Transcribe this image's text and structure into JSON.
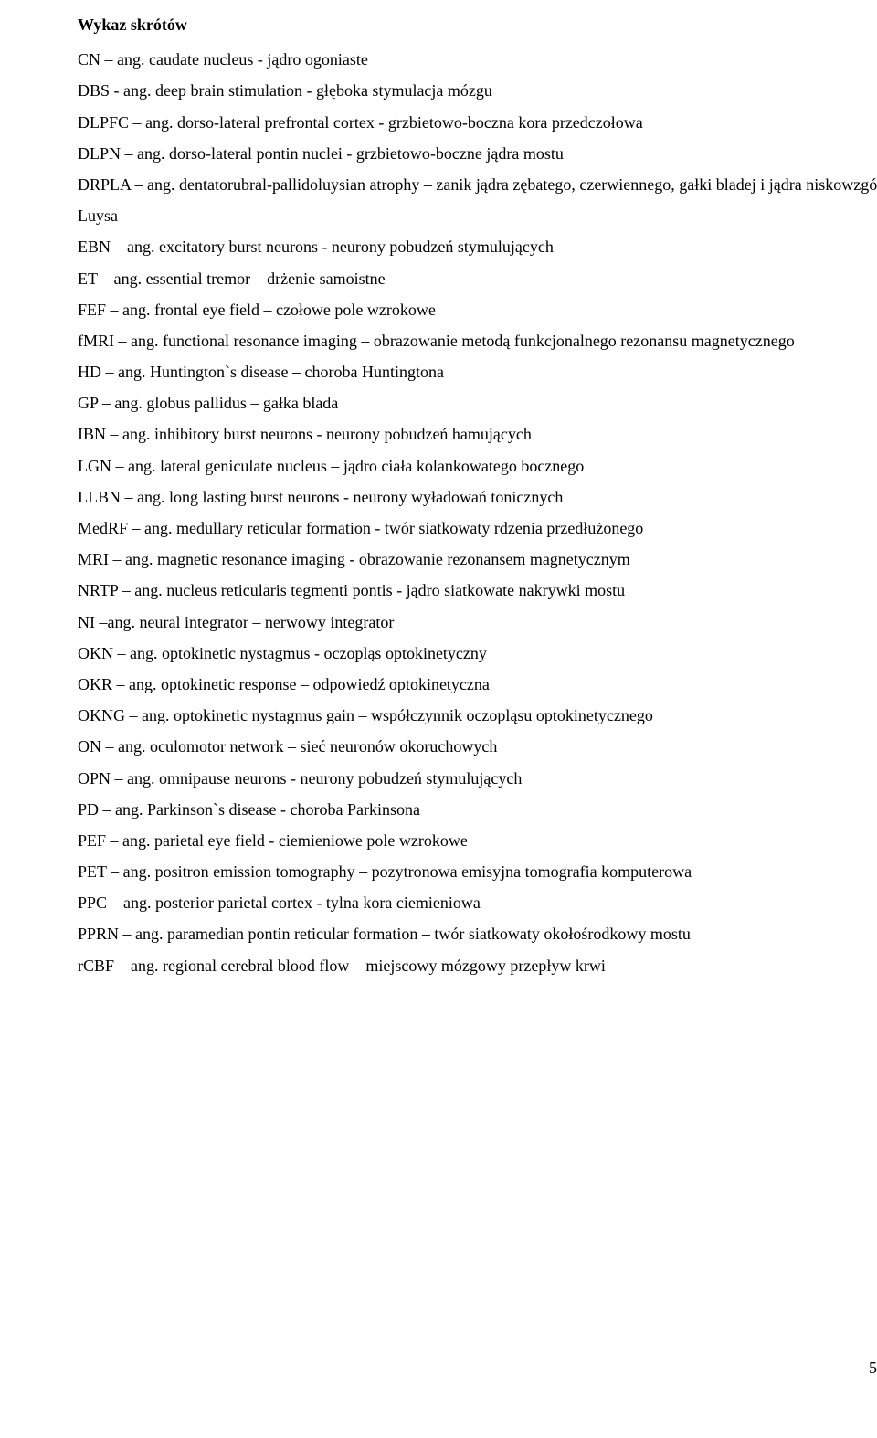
{
  "title": "Wykaz skrótów",
  "entries": [
    "CN – ang. caudate nucleus - jądro ogoniaste",
    "DBS - ang. deep brain stimulation - głęboka stymulacja mózgu",
    "DLPFC – ang. dorso-lateral prefrontal cortex - grzbietowo-boczna kora przedczołowa",
    "DLPN – ang. dorso-lateral pontin nuclei - grzbietowo-boczne jądra mostu",
    "DRPLA – ang. dentatorubral-pallidoluysian atrophy – zanik jądra zębatego, czerwiennego, gałki bladej i jądra niskowzgórzowego Luysa",
    "EBN – ang. excitatory burst neurons - neurony pobudzeń stymulujących",
    "ET – ang. essential tremor – drżenie samoistne",
    "FEF – ang. frontal eye field – czołowe pole wzrokowe",
    "fMRI – ang. functional resonance imaging – obrazowanie metodą funkcjonalnego rezonansu magnetycznego",
    "HD – ang. Huntington`s disease – choroba Huntingtona",
    "GP – ang. globus pallidus – gałka blada",
    "IBN – ang. inhibitory burst neurons - neurony pobudzeń hamujących",
    "LGN – ang. lateral geniculate nucleus – jądro ciała kolankowatego bocznego",
    "LLBN – ang. long lasting burst neurons - neurony wyładowań tonicznych",
    "MedRF – ang. medullary reticular formation - twór siatkowaty rdzenia przedłużonego",
    "MRI – ang. magnetic resonance imaging - obrazowanie rezonansem magnetycznym",
    "NRTP – ang. nucleus reticularis tegmenti pontis - jądro siatkowate nakrywki mostu",
    "NI –ang. neural integrator – nerwowy integrator",
    "OKN – ang. optokinetic nystagmus - oczopląs optokinetyczny",
    "OKR – ang. optokinetic response – odpowiedź optokinetyczna",
    "OKNG – ang. optokinetic nystagmus gain – współczynnik oczopląsu optokinetycznego",
    "ON – ang. oculomotor network – sieć neuronów okoruchowych",
    "OPN – ang. omnipause neurons - neurony pobudzeń stymulujących",
    "PD – ang. Parkinson`s disease - choroba Parkinsona",
    "PEF – ang. parietal eye field - ciemieniowe pole wzrokowe",
    "PET – ang. positron emission tomography – pozytronowa emisyjna tomografia komputerowa",
    "PPC – ang. posterior parietal cortex - tylna kora ciemieniowa",
    "PPRN – ang. paramedian pontin reticular formation – twór siatkowaty okołośrodkowy mostu",
    "rCBF – ang. regional cerebral blood flow – miejscowy mózgowy przepływ krwi"
  ],
  "page_number": "5"
}
